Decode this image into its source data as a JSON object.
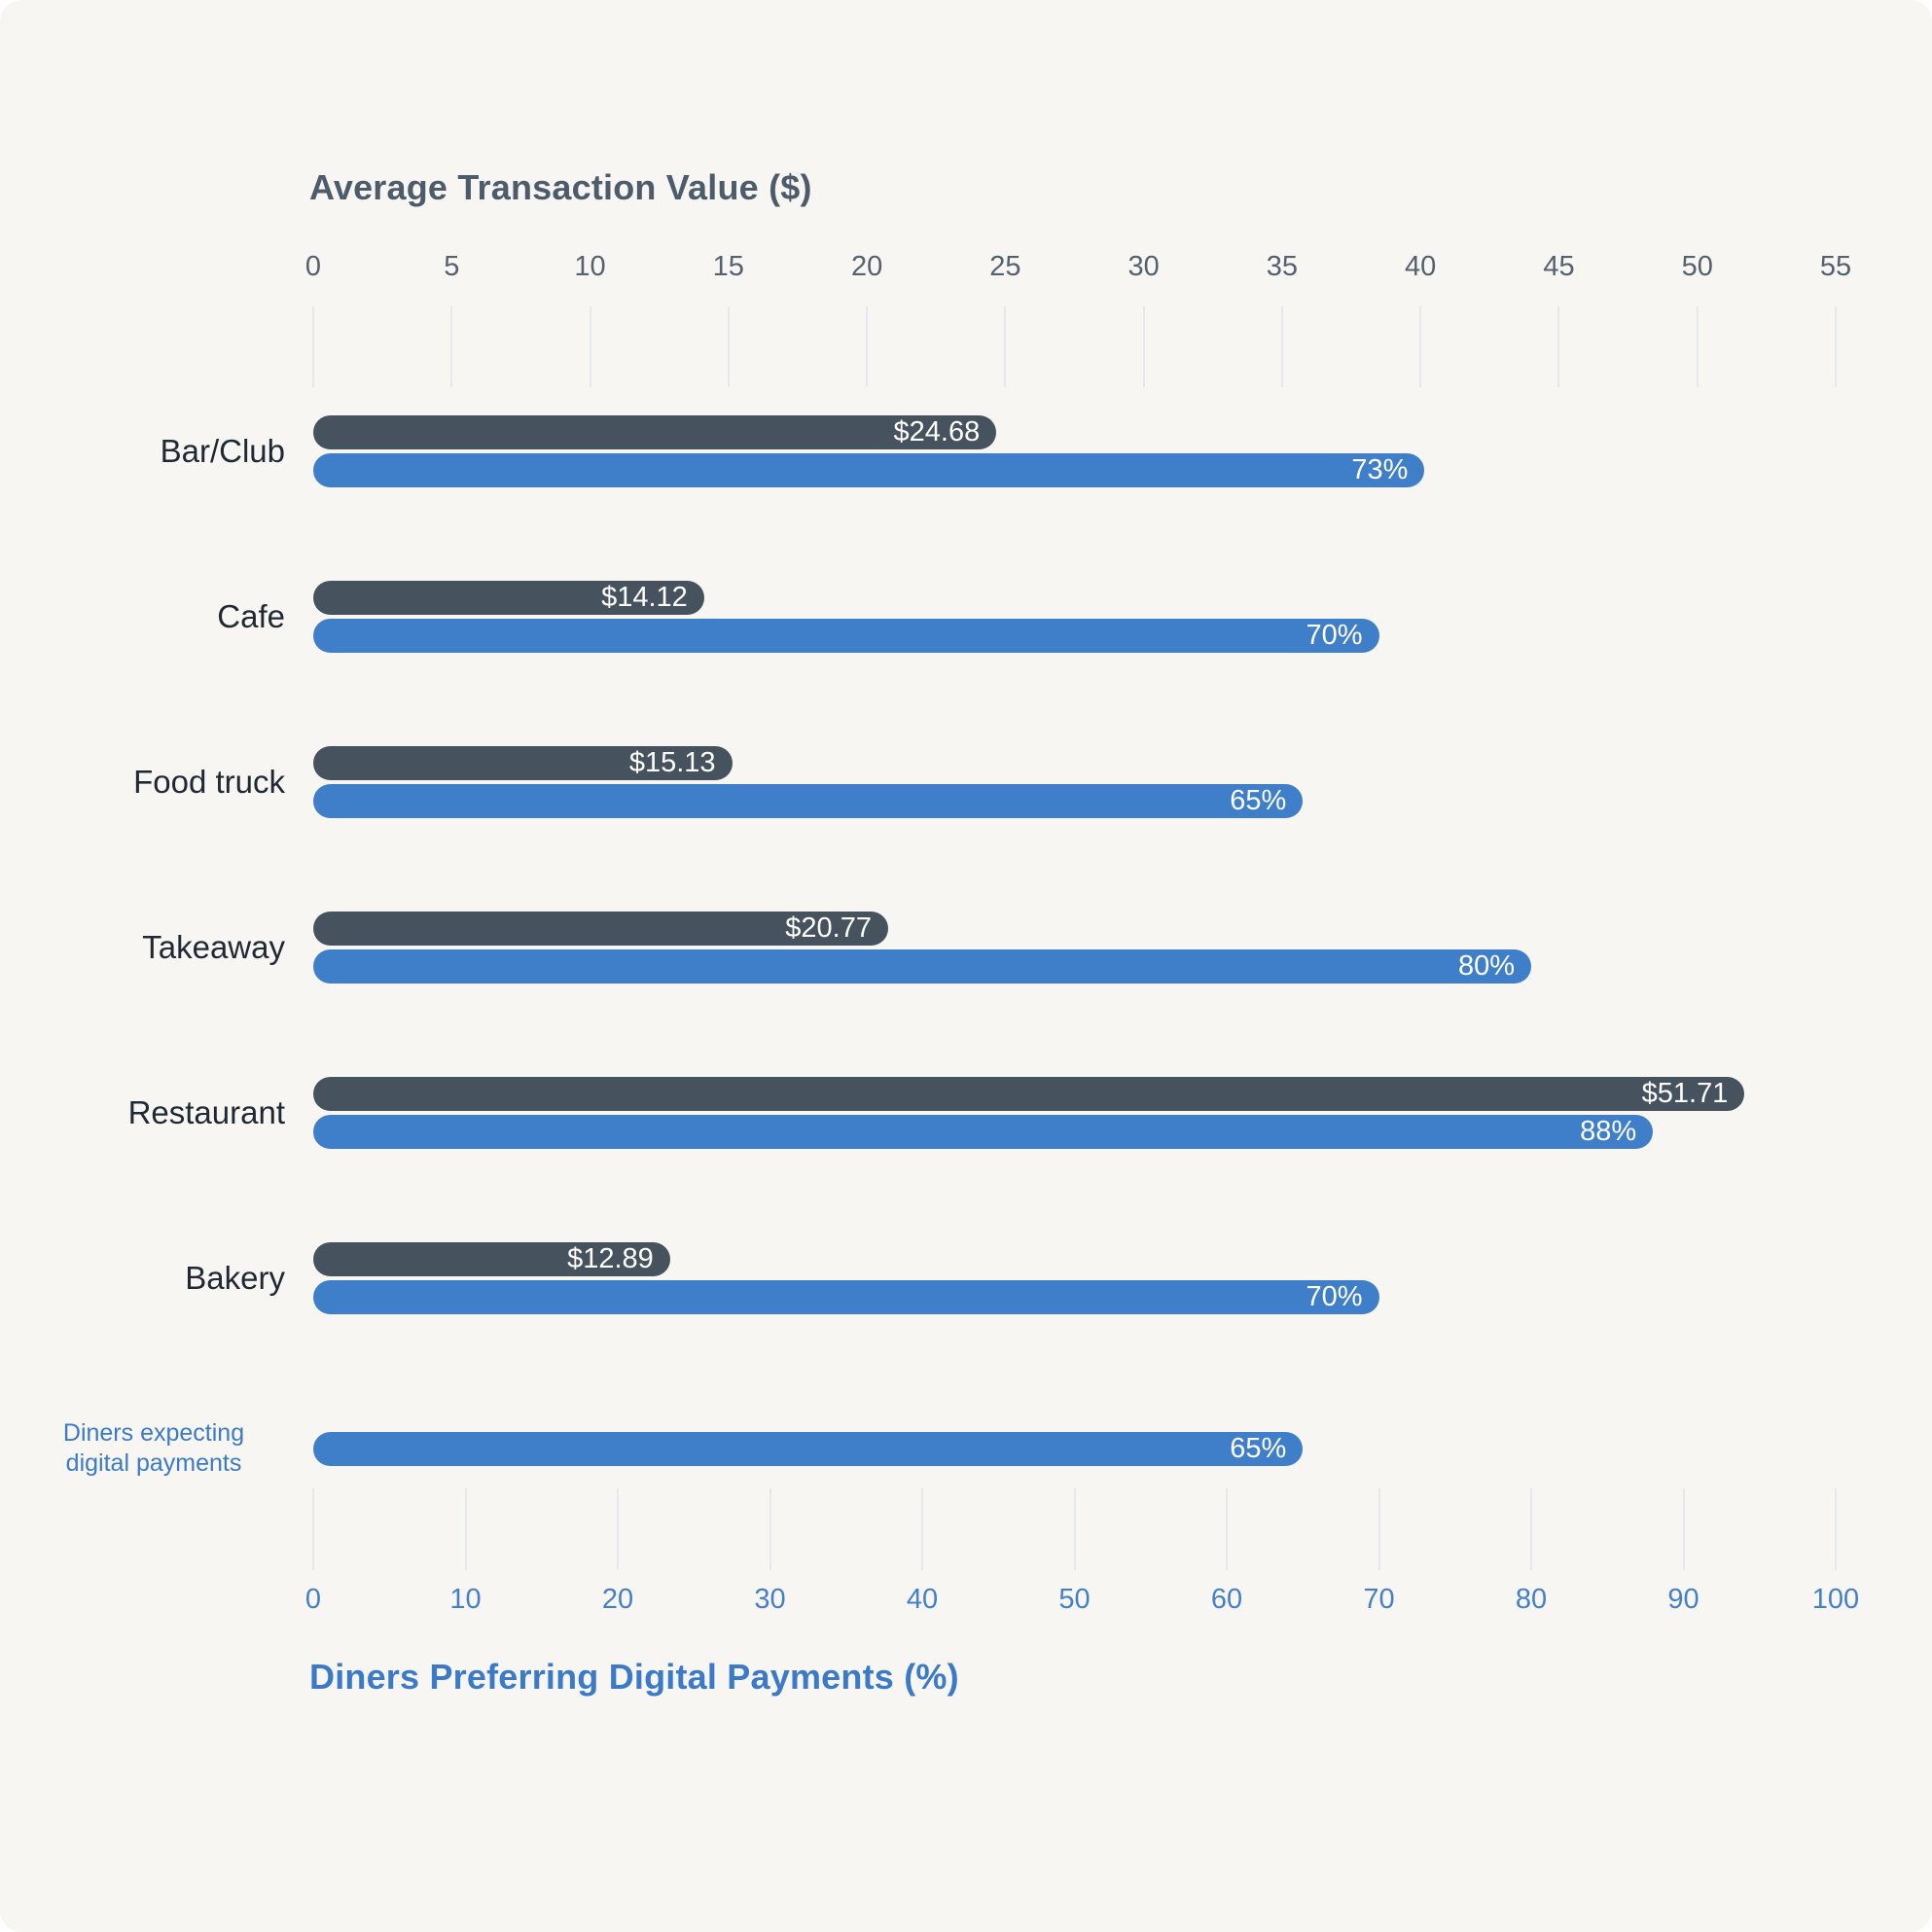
{
  "chart_data": {
    "type": "bar",
    "orientation": "horizontal",
    "top_axis": {
      "title": "Average Transaction Value ($)",
      "min": 0,
      "max": 55,
      "tick_step": 5,
      "ticks": [
        "0",
        "5",
        "10",
        "15",
        "20",
        "25",
        "30",
        "35",
        "40",
        "45",
        "50",
        "55"
      ]
    },
    "bottom_axis": {
      "title": "Diners Preferring Digital Payments (%)",
      "min": 0,
      "max": 100,
      "tick_step": 10,
      "ticks": [
        "0",
        "10",
        "20",
        "30",
        "40",
        "50",
        "60",
        "70",
        "80",
        "90",
        "100"
      ]
    },
    "series": [
      {
        "name": "Average Transaction Value ($)",
        "axis": "top",
        "color": "#46535f"
      },
      {
        "name": "Diners Preferring Digital Payments (%)",
        "axis": "bottom",
        "color": "#3f7ec9"
      }
    ],
    "rows": [
      {
        "label_lines": [
          "Bar/Club"
        ],
        "transaction_value": 24.68,
        "transaction_label": "$24.68",
        "digital_pct": 73,
        "digital_label": "73%",
        "highlight_label": false
      },
      {
        "label_lines": [
          "Cafe"
        ],
        "transaction_value": 14.12,
        "transaction_label": "$14.12",
        "digital_pct": 70,
        "digital_label": "70%",
        "highlight_label": false
      },
      {
        "label_lines": [
          "Food truck"
        ],
        "transaction_value": 15.13,
        "transaction_label": "$15.13",
        "digital_pct": 65,
        "digital_label": "65%",
        "highlight_label": false
      },
      {
        "label_lines": [
          "Takeaway"
        ],
        "transaction_value": 20.77,
        "transaction_label": "$20.77",
        "digital_pct": 80,
        "digital_label": "80%",
        "highlight_label": false
      },
      {
        "label_lines": [
          "Restaurant"
        ],
        "transaction_value": 51.71,
        "transaction_label": "$51.71",
        "digital_pct": 88,
        "digital_label": "88%",
        "highlight_label": false
      },
      {
        "label_lines": [
          "Bakery"
        ],
        "transaction_value": 12.89,
        "transaction_label": "$12.89",
        "digital_pct": 70,
        "digital_label": "70%",
        "highlight_label": false
      },
      {
        "label_lines": [
          "Diners expecting",
          "digital payments"
        ],
        "transaction_value": null,
        "transaction_label": null,
        "digital_pct": 65,
        "digital_label": "65%",
        "highlight_label": true
      }
    ]
  },
  "colors": {
    "page": "#ffffff",
    "card_background": "#f8f6f2",
    "transaction_bar": "#46535f",
    "digital_bar": "#3f7ec9",
    "top_axis_text": "#54616e",
    "top_title_text": "#4d5c6b",
    "category_text": "#1e2933",
    "bottom_axis_text": "#4480ca",
    "bar_value_text": "#ffffff",
    "tick_line": "#e7e8ee"
  }
}
